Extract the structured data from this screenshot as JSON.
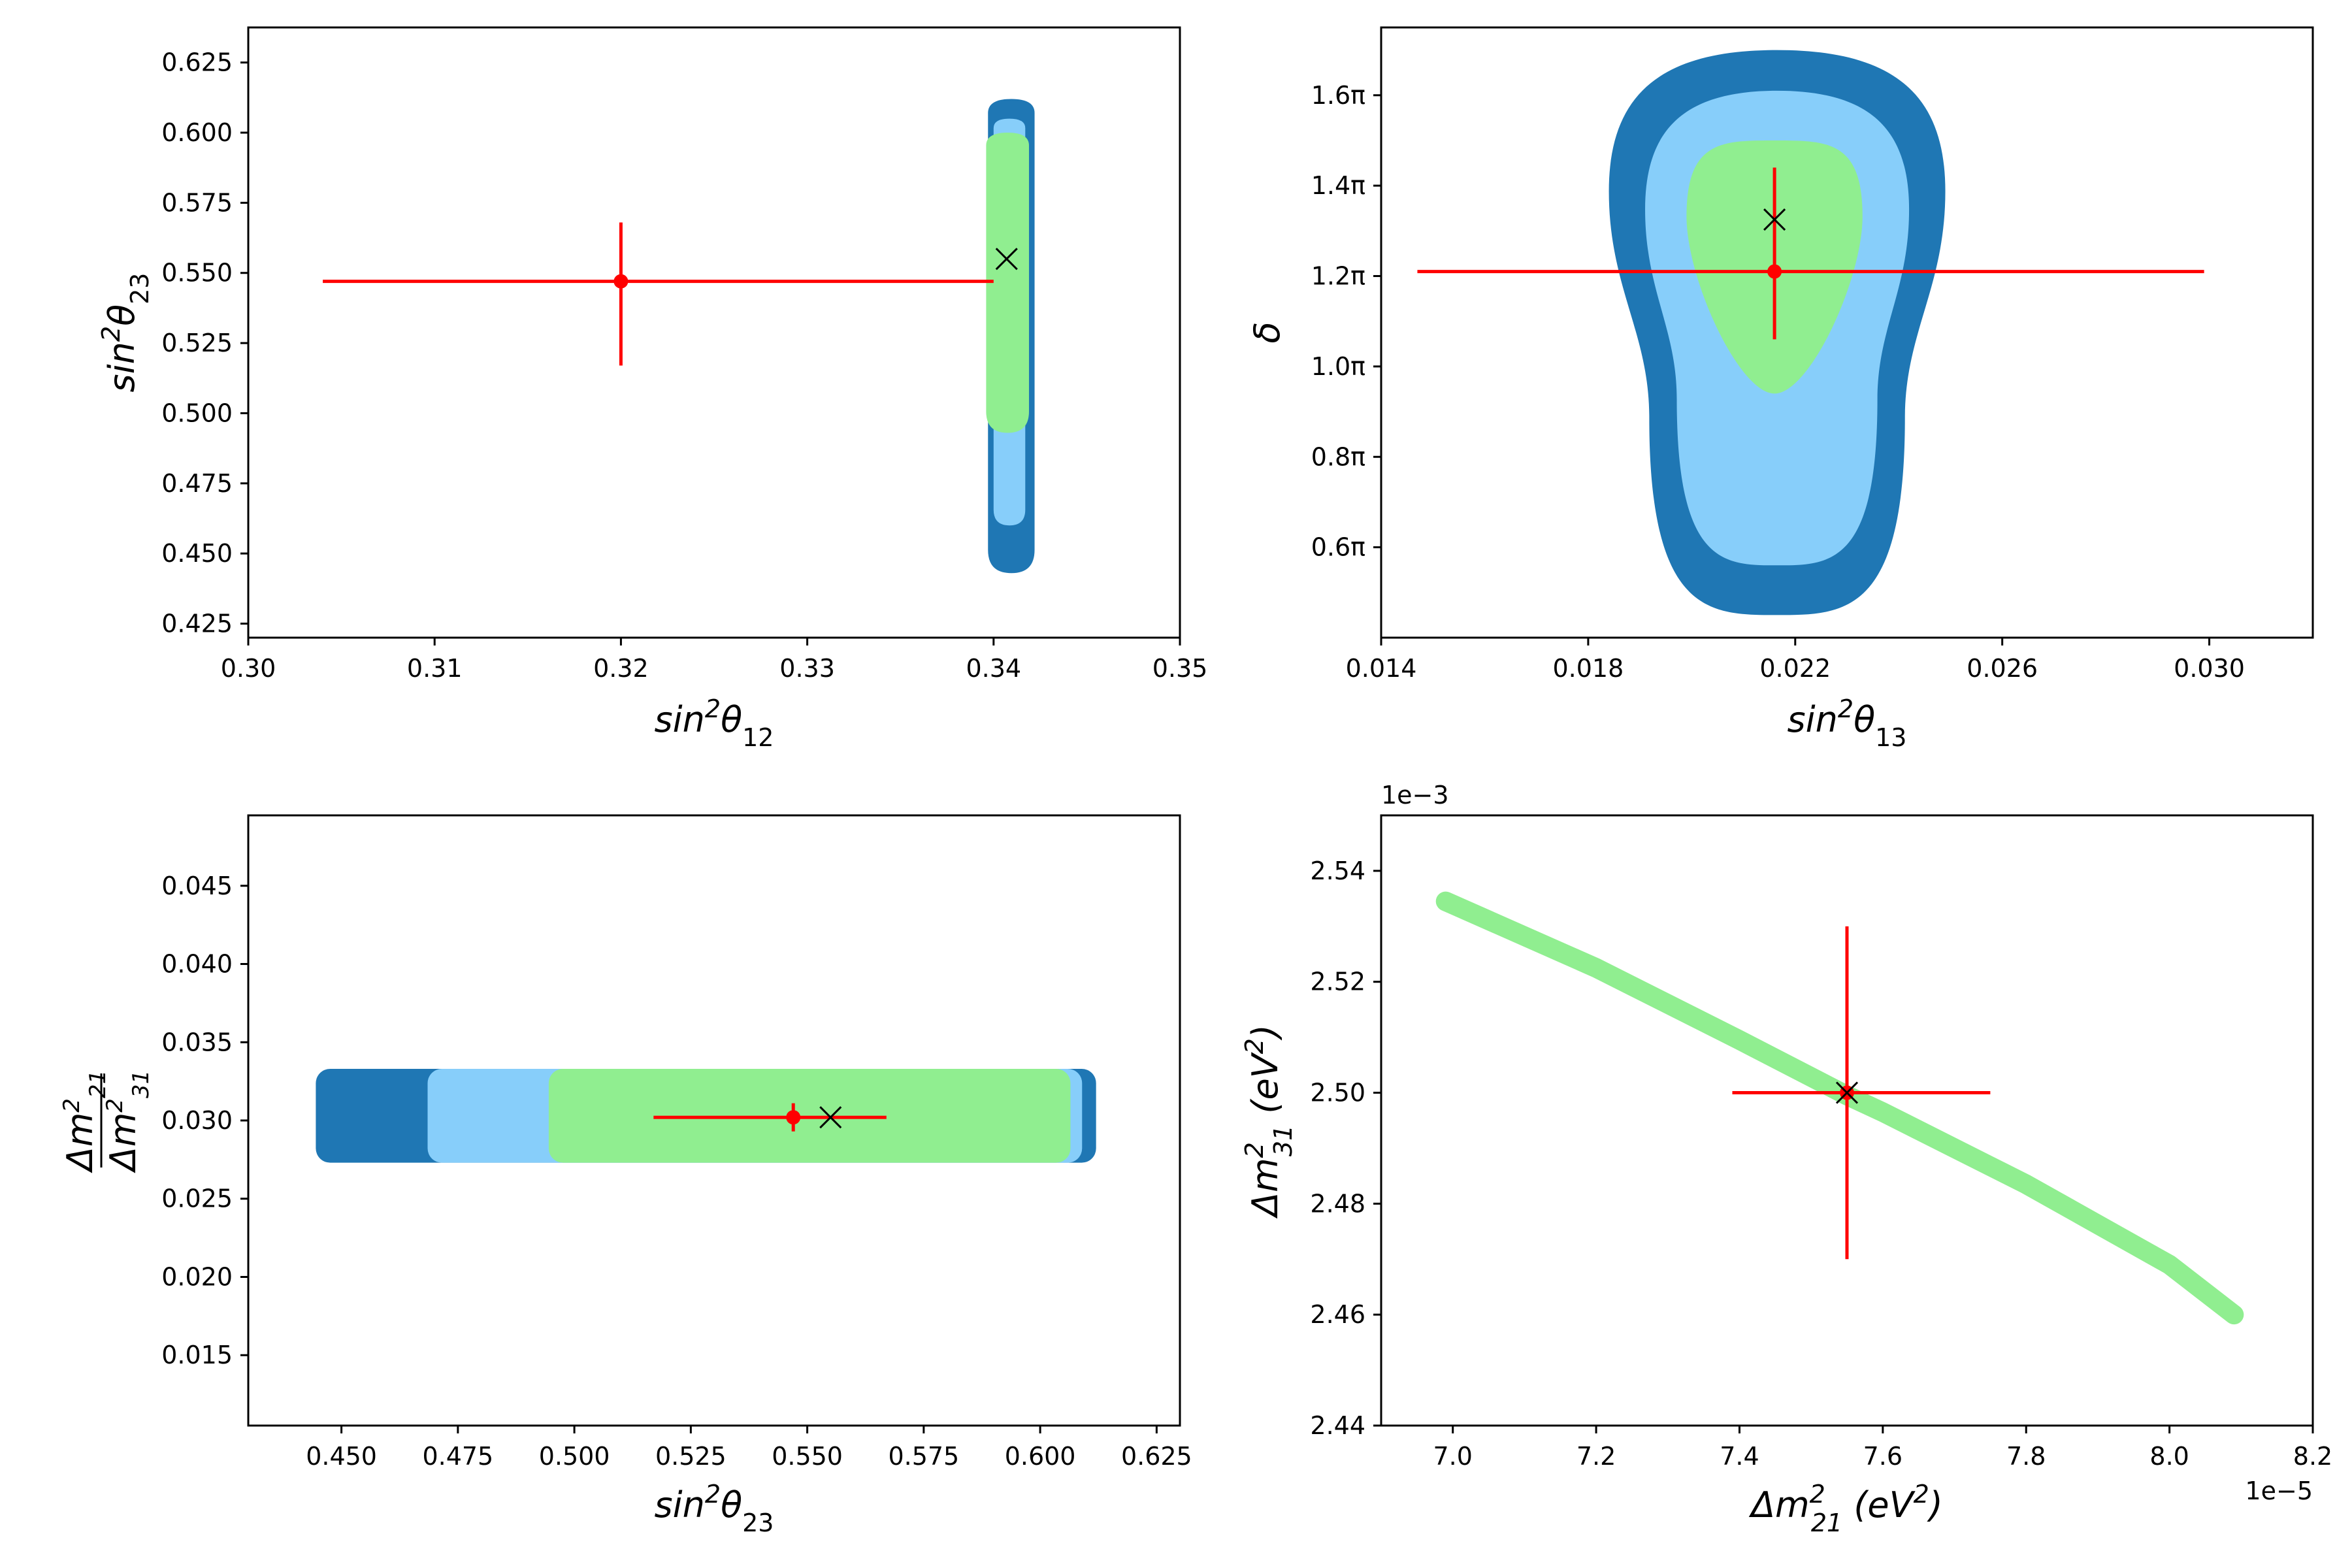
{
  "figure": {
    "description_colors": {
      "sigma3": "#1f77b4",
      "sigma2": "#87cefa",
      "sigma1": "#90ee90",
      "marker": "#ff0000",
      "bestfit": "#000000"
    }
  },
  "chart_data": [
    {
      "id": "p1",
      "type": "scatter",
      "xlabel_base": "sin",
      "xlabel_sup": "2",
      "xlabel_sym": "θ",
      "xlabel_sub": "12",
      "ylabel_base": "sin",
      "ylabel_sup": "2",
      "ylabel_sym": "θ",
      "ylabel_sub": "23",
      "xlim": [
        0.3,
        0.35
      ],
      "ylim": [
        0.42,
        0.6375
      ],
      "xticks": [
        0.3,
        0.31,
        0.32,
        0.33,
        0.34,
        0.35
      ],
      "xtick_labels": [
        "0.30",
        "0.31",
        "0.32",
        "0.33",
        "0.34",
        "0.35"
      ],
      "yticks": [
        0.425,
        0.45,
        0.475,
        0.5,
        0.525,
        0.55,
        0.575,
        0.6,
        0.625
      ],
      "ytick_labels": [
        "0.425",
        "0.450",
        "0.475",
        "0.500",
        "0.525",
        "0.550",
        "0.575",
        "0.600",
        "0.625"
      ],
      "contours": [
        {
          "level": "3sigma",
          "x_range": [
            0.3397,
            0.3422
          ],
          "y_range": [
            0.443,
            0.612
          ]
        },
        {
          "level": "2sigma",
          "x_range": [
            0.34,
            0.3417
          ],
          "y_range": [
            0.46,
            0.605
          ]
        },
        {
          "level": "1sigma",
          "x_range": [
            0.3396,
            0.3419
          ],
          "y_range": [
            0.493,
            0.6
          ]
        }
      ],
      "measurement": {
        "x": 0.32,
        "y": 0.547,
        "x_err": [
          0.016,
          0.02
        ],
        "y_err": [
          0.03,
          0.021
        ]
      },
      "best_fit": {
        "x": 0.3407,
        "y": 0.555
      }
    },
    {
      "id": "p2",
      "type": "scatter",
      "xlabel_base": "sin",
      "xlabel_sup": "2",
      "xlabel_sym": "θ",
      "xlabel_sub": "13",
      "ylabel_sym": "δ",
      "xlim": [
        0.014,
        0.032
      ],
      "ylim": [
        0.4,
        1.75
      ],
      "xticks": [
        0.014,
        0.018,
        0.022,
        0.026,
        0.03
      ],
      "xtick_labels": [
        "0.014",
        "0.018",
        "0.022",
        "0.026",
        "0.030"
      ],
      "yticks": [
        0.6,
        0.8,
        1.0,
        1.2,
        1.4,
        1.6
      ],
      "ytick_labels": [
        "0.6π",
        "0.8π",
        "1.0π",
        "1.2π",
        "1.4π",
        "1.6π"
      ],
      "contours": [
        {
          "level": "3sigma",
          "x_range": [
            0.0184,
            0.0249
          ],
          "y_range": [
            0.45,
            1.7
          ]
        },
        {
          "level": "2sigma",
          "x_range": [
            0.0191,
            0.0242
          ],
          "y_range": [
            0.56,
            1.61
          ]
        },
        {
          "level": "1sigma",
          "x_range": [
            0.0199,
            0.0233
          ],
          "y_range": [
            0.94,
            1.5
          ]
        }
      ],
      "measurement": {
        "x": 0.0216,
        "y": 1.21,
        "x_err": [
          0.0069,
          0.0083
        ],
        "y_err": [
          0.15,
          0.23
        ]
      },
      "best_fit": {
        "x": 0.0216,
        "y": 1.325
      }
    },
    {
      "id": "p3",
      "type": "scatter",
      "xlabel_base": "sin",
      "xlabel_sup": "2",
      "xlabel_sym": "θ",
      "xlabel_sub": "23",
      "ylabel_frac_num": "Δm",
      "ylabel_frac_num_sup": "2",
      "ylabel_frac_num_sub": "21",
      "ylabel_frac_den": "Δm",
      "ylabel_frac_den_sup": "2",
      "ylabel_frac_den_sub": "31",
      "xlim": [
        0.43,
        0.63
      ],
      "ylim": [
        0.0105,
        0.0495
      ],
      "xticks": [
        0.45,
        0.475,
        0.5,
        0.525,
        0.55,
        0.575,
        0.6,
        0.625
      ],
      "xtick_labels": [
        "0.450",
        "0.475",
        "0.500",
        "0.525",
        "0.550",
        "0.575",
        "0.600",
        "0.625"
      ],
      "yticks": [
        0.015,
        0.02,
        0.025,
        0.03,
        0.035,
        0.04,
        0.045
      ],
      "ytick_labels": [
        "0.015",
        "0.020",
        "0.025",
        "0.030",
        "0.035",
        "0.040",
        "0.045"
      ],
      "contours": [
        {
          "level": "3sigma",
          "x_range": [
            0.4445,
            0.612
          ],
          "y_range": [
            0.0273,
            0.0333
          ]
        },
        {
          "level": "2sigma",
          "x_range": [
            0.4685,
            0.609
          ],
          "y_range": [
            0.0273,
            0.0333
          ]
        },
        {
          "level": "1sigma",
          "x_range": [
            0.4945,
            0.6065
          ],
          "y_range": [
            0.0273,
            0.0333
          ]
        }
      ],
      "measurement": {
        "x": 0.547,
        "y": 0.0302,
        "x_err": [
          0.03,
          0.02
        ],
        "y_err": [
          0.0009,
          0.0009
        ]
      },
      "best_fit": {
        "x": 0.555,
        "y": 0.0302
      }
    },
    {
      "id": "p4",
      "type": "line",
      "xlabel_base": "Δm",
      "xlabel_sup": "2",
      "xlabel_sub": "21",
      "xlabel_unit": " (eV",
      "xlabel_unit_sup": "2",
      "xlabel_unit_close": ")",
      "ylabel_base": "Δm",
      "ylabel_sup": "2",
      "ylabel_sub": "31",
      "ylabel_unit": " (eV",
      "ylabel_unit_sup": "2",
      "ylabel_unit_close": ")",
      "x_offset": "1e−5",
      "y_offset": "1e−3",
      "xlim": [
        6.9,
        8.2
      ],
      "ylim": [
        2.44,
        2.55
      ],
      "xticks": [
        7.0,
        7.2,
        7.4,
        7.6,
        7.8,
        8.0,
        8.2
      ],
      "xtick_labels": [
        "7.0",
        "7.2",
        "7.4",
        "7.6",
        "7.8",
        "8.0",
        "8.2"
      ],
      "yticks": [
        2.44,
        2.46,
        2.48,
        2.5,
        2.52,
        2.54
      ],
      "ytick_labels": [
        "2.44",
        "2.46",
        "2.48",
        "2.50",
        "2.52",
        "2.54"
      ],
      "band_1sigma": {
        "x": [
          6.99,
          7.2,
          7.4,
          7.55,
          7.6,
          7.8,
          8.0,
          8.09
        ],
        "y": [
          2.5345,
          2.5225,
          2.5095,
          2.4995,
          2.4965,
          2.4835,
          2.469,
          2.46
        ]
      },
      "measurement": {
        "x": 7.55,
        "y": 2.5,
        "x_err": [
          0.16,
          0.2
        ],
        "y_err": [
          0.03,
          0.03
        ]
      },
      "best_fit": {
        "x": 7.55,
        "y": 2.5
      }
    }
  ]
}
